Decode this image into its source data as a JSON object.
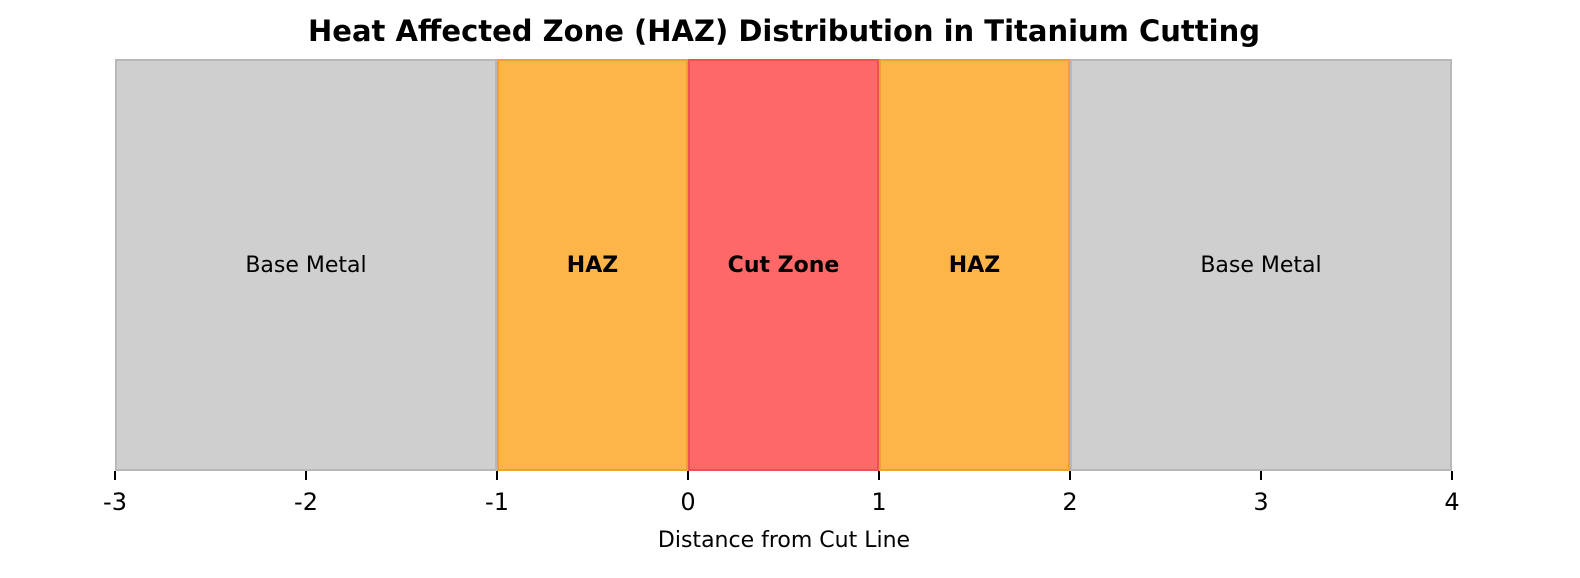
{
  "chart_data": {
    "type": "bar",
    "orientation": "horizontal-spans",
    "title": "Heat Affected Zone (HAZ) Distribution in Titanium Cutting",
    "xlabel": "Distance from Cut Line",
    "ylabel": "",
    "xlim": [
      -3,
      4
    ],
    "xticks": [
      -3,
      -2,
      -1,
      0,
      1,
      2,
      3,
      4
    ],
    "xtick_labels": [
      "-3",
      "-2",
      "-1",
      "0",
      "1",
      "2",
      "3",
      "4"
    ],
    "yticks": [],
    "grid": false,
    "legend": null,
    "zones": [
      {
        "label": "Base Metal",
        "start": -3,
        "end": -1,
        "color": "#cfcfcf",
        "edge": "#b8b8b8",
        "bold": false
      },
      {
        "label": "HAZ",
        "start": -1,
        "end": 0,
        "color": "#fdb54a",
        "edge": "#f0a030",
        "bold": true
      },
      {
        "label": "Cut Zone",
        "start": 0,
        "end": 1,
        "color": "#ff6868",
        "edge": "#f05050",
        "bold": true
      },
      {
        "label": "HAZ",
        "start": 1,
        "end": 2,
        "color": "#fdb54a",
        "edge": "#f0a030",
        "bold": true
      },
      {
        "label": "Base Metal",
        "start": 2,
        "end": 4,
        "color": "#cfcfcf",
        "edge": "#b8b8b8",
        "bold": false
      }
    ]
  }
}
